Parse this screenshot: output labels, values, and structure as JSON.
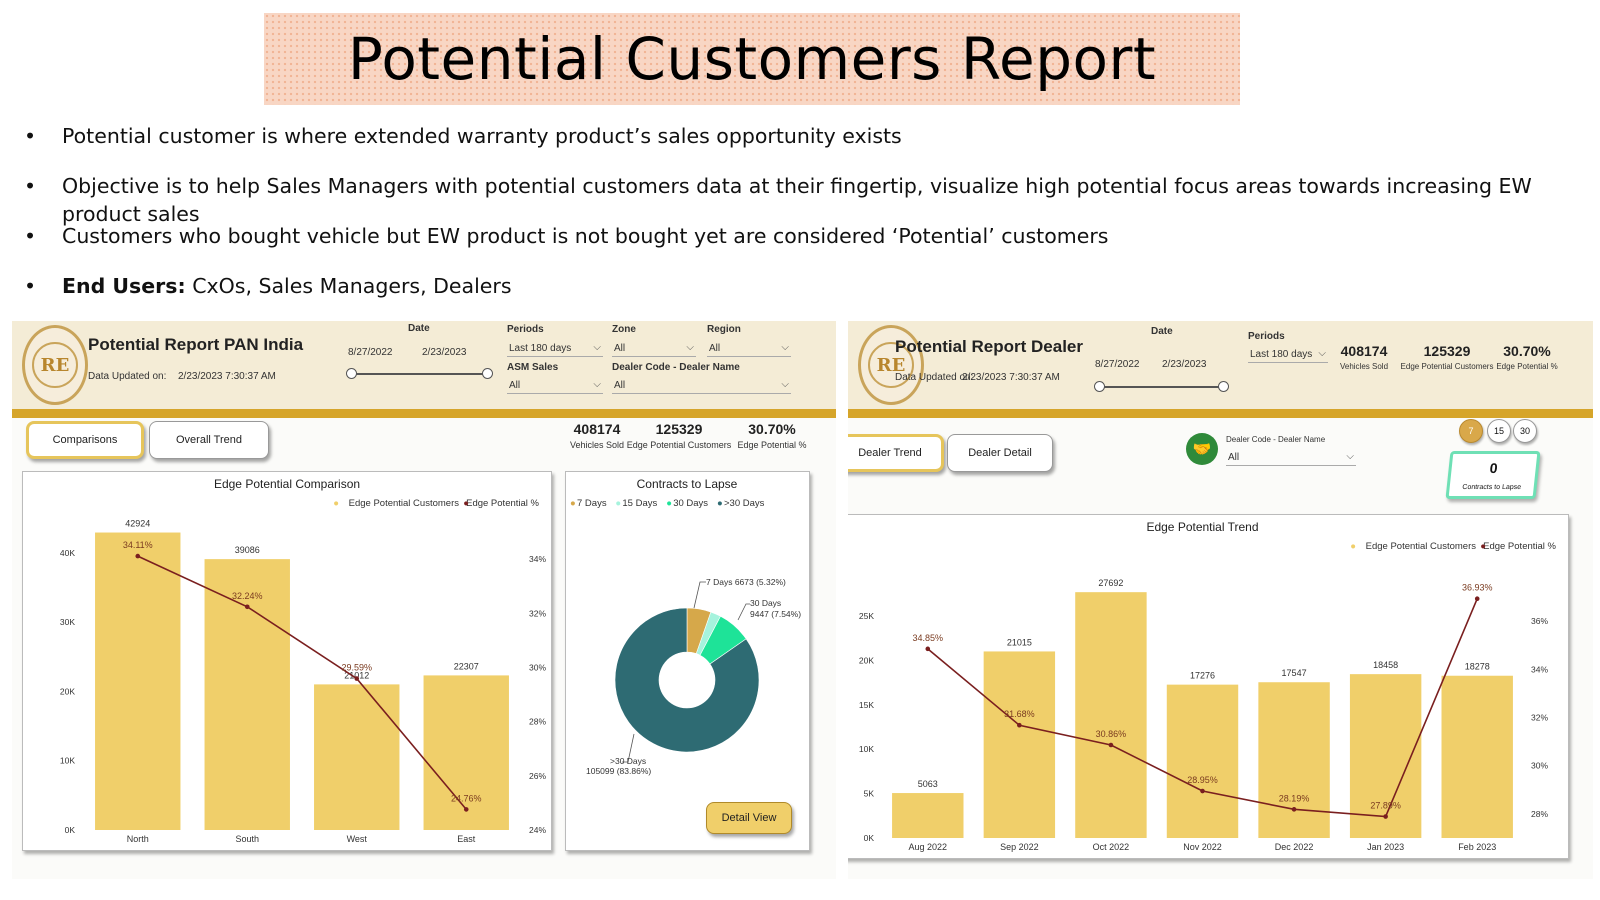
{
  "slide": {
    "title": "Potential Customers Report",
    "bullets": [
      {
        "bold": "",
        "text": "Potential customer is where extended warranty product’s sales opportunity exists"
      },
      {
        "bold": "",
        "text": "Objective is to help Sales Managers with potential customers data at their fingertip, visualize high potential focus areas towards increasing EW product sales"
      },
      {
        "bold": "",
        "text": "Customers who bought vehicle but EW product is not bought yet are considered ‘Potential’ customers"
      },
      {
        "bold": "End Users:",
        "text": " CxOs, Sales Managers, Dealers"
      }
    ],
    "bullet_char": "•"
  },
  "pan": {
    "title": "Potential Report PAN India",
    "updated_label": "Data Updated on:",
    "updated_value": "2/23/2023 7:30:37 AM",
    "date_label": "Date",
    "date_start": "8/27/2022",
    "date_end": "2/23/2023",
    "periods_label": "Periods",
    "periods_value": "Last 180 days",
    "zone_label": "Zone",
    "zone_value": "All",
    "region_label": "Region",
    "region_value": "All",
    "asm_label": "ASM Sales",
    "asm_value": "All",
    "dealer_label": "Dealer Code - Dealer Name",
    "dealer_value": "All",
    "btn_comparisons": "Comparisons",
    "btn_trend": "Overall Trend",
    "kpis": [
      {
        "num": "408174",
        "label": "Vehicles Sold"
      },
      {
        "num": "125329",
        "label": "Edge Potential Customers"
      },
      {
        "num": "30.70%",
        "label": "Edge Potential %"
      }
    ],
    "detail_btn": "Detail View"
  },
  "dealer": {
    "title": "Potential Report Dealer",
    "updated_label": "Data Updated on:",
    "updated_value": "2/23/2023 7:30:37 AM",
    "date_label": "Date",
    "date_start": "8/27/2022",
    "date_end": "2/23/2023",
    "periods_label": "Periods",
    "periods_value": "Last 180 days",
    "kpis": [
      {
        "num": "408174",
        "label": "Vehicles Sold"
      },
      {
        "num": "125329",
        "label": "Edge Potential Customers"
      },
      {
        "num": "30.70%",
        "label": "Edge Potential %"
      }
    ],
    "btn_trend": "Dealer Trend",
    "btn_detail": "Dealer Detail",
    "dealer_label": "Dealer Code - Dealer Name",
    "dealer_value": "All",
    "day_options": [
      "7",
      "15",
      "30"
    ],
    "lapse_num": "0",
    "lapse_label": "Contracts to Lapse"
  },
  "colors": {
    "bar": "#f0cf6a",
    "line": "#7a1f1f",
    "teal": "#2e6b73",
    "green": "#1ee398",
    "mint": "#a6f3dd",
    "gold": "#d6a84a",
    "accent": "#d6a52a"
  },
  "chart_data": [
    {
      "type": "bar",
      "title": "Edge Potential Comparison",
      "categories": [
        "North",
        "South",
        "West",
        "East"
      ],
      "series": [
        {
          "name": "Edge Potential Customers",
          "values": [
            42924,
            39086,
            21012,
            22307
          ],
          "labels": [
            "42924",
            "39086",
            "21012",
            "22307"
          ]
        },
        {
          "name": "Edge Potential %",
          "type": "line",
          "axis": "right",
          "values": [
            34.11,
            32.24,
            29.59,
            24.76
          ],
          "labels": [
            "34.11%",
            "32.24%",
            "29.59%",
            "24.76%"
          ]
        }
      ],
      "ylim": [
        0,
        43000
      ],
      "y2lim": [
        24,
        35
      ],
      "yticks": [
        0,
        10000,
        20000,
        30000,
        40000
      ],
      "ytick_labels": [
        "0K",
        "10K",
        "20K",
        "30K",
        "40K"
      ],
      "y2ticks": [
        24,
        26,
        28,
        30,
        32,
        34
      ],
      "y2tick_labels": [
        "24%",
        "26%",
        "28%",
        "30%",
        "32%",
        "34%"
      ],
      "legend": "top-right"
    },
    {
      "type": "pie",
      "title": "Contracts to Lapse",
      "legend": [
        "7 Days",
        "15 Days",
        "30 Days",
        ">30 Days"
      ],
      "slices": [
        {
          "name": "7 Days",
          "value": 6673,
          "pct": 5.32
        },
        {
          "name": "15 Days",
          "value": 2900,
          "pct": 2.31
        },
        {
          "name": "30 Days",
          "value": 9447,
          "pct": 7.54
        },
        {
          "name": ">30 Days",
          "value": 105099,
          "pct": 83.86
        }
      ],
      "annotations": [
        "7 Days 6673 (5.32%)",
        "30 Days",
        "9447 (7.54%)",
        ">30 Days",
        "105099 (83.86%)"
      ]
    },
    {
      "type": "bar",
      "title": "Edge Potential Trend",
      "categories": [
        "Aug 2022",
        "Sep 2022",
        "Oct 2022",
        "Nov 2022",
        "Dec 2022",
        "Jan 2023",
        "Feb 2023"
      ],
      "series": [
        {
          "name": "Edge Potential Customers",
          "values": [
            5063,
            21015,
            27692,
            17276,
            17547,
            18458,
            18278
          ],
          "labels": [
            "5063",
            "21015",
            "27692",
            "17276",
            "17547",
            "18458",
            "18278"
          ]
        },
        {
          "name": "Edge Potential %",
          "type": "line",
          "axis": "right",
          "values": [
            34.85,
            31.68,
            30.86,
            28.95,
            28.19,
            27.89,
            36.93
          ],
          "labels": [
            "34.85%",
            "31.68%",
            "30.86%",
            "28.95%",
            "28.19%",
            "27.89%",
            "36.93%"
          ]
        }
      ],
      "ylim": [
        0,
        28500
      ],
      "y2lim": [
        27,
        37.5
      ],
      "yticks": [
        0,
        5000,
        10000,
        15000,
        20000,
        25000
      ],
      "ytick_labels": [
        "0K",
        "5K",
        "10K",
        "15K",
        "20K",
        "25K"
      ],
      "y2ticks": [
        28,
        30,
        32,
        34,
        36
      ],
      "y2tick_labels": [
        "28%",
        "30%",
        "32%",
        "34%",
        "36%"
      ],
      "legend": "top-right"
    }
  ]
}
